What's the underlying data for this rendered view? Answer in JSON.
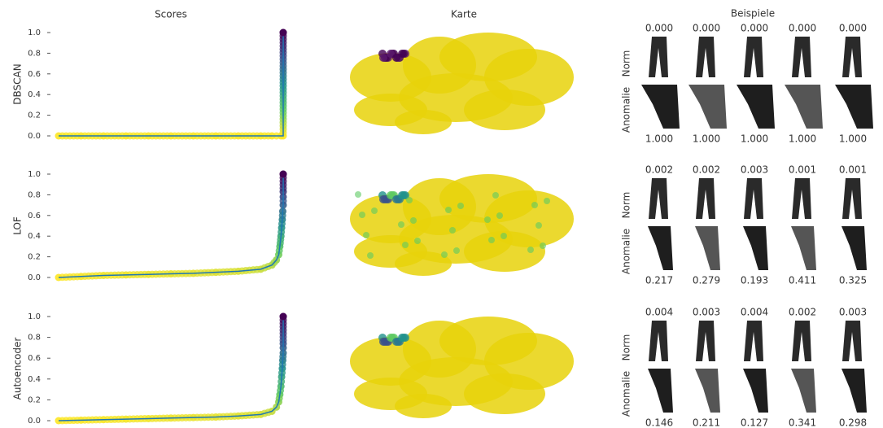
{
  "header": {
    "scores": "Scores",
    "map": "Karte",
    "examples": "Beispiele"
  },
  "chart_data": [
    {
      "type": "line",
      "ylabel": "DBSCAN",
      "colormap": "viridis",
      "line_color": "#1f77b4",
      "xlim": [
        0,
        1
      ],
      "ylim": [
        0,
        1
      ],
      "yticks": [
        {
          "value": 0,
          "label": "0.0"
        },
        0.2,
        0.4,
        0.6,
        0.8,
        {
          "value": 1,
          "label": "1.0"
        }
      ],
      "x": [
        0,
        0.1,
        0.2,
        0.3,
        0.4,
        0.5,
        0.6,
        0.7,
        0.8,
        0.9,
        0.95,
        0.99,
        1,
        1
      ],
      "values": [
        0,
        0,
        0,
        0,
        0,
        0,
        0,
        0,
        0,
        0,
        0,
        0,
        0,
        1
      ],
      "examples": {
        "norm_label": "Norm",
        "anomaly_label": "Anomalie",
        "norm": {
          "values": [
            0,
            0,
            0,
            0,
            0
          ],
          "value_labels": [
            "0.000",
            "0.000",
            "0.000",
            "0.000",
            "0.000"
          ]
        },
        "anomaly": {
          "values": [
            1,
            1,
            1,
            1,
            1
          ],
          "value_labels": [
            "1.000",
            "1.000",
            "1.000",
            "1.000",
            "1.000"
          ]
        }
      }
    },
    {
      "type": "line",
      "ylabel": "LOF",
      "colormap": "viridis",
      "line_color": "#1f77b4",
      "xlim": [
        0,
        1
      ],
      "ylim": [
        0,
        1
      ],
      "yticks": [
        {
          "value": 0,
          "label": "0.0"
        },
        0.2,
        0.4,
        0.6,
        0.8,
        {
          "value": 1,
          "label": "1.0"
        }
      ],
      "x": [
        0,
        0.1,
        0.2,
        0.3,
        0.4,
        0.5,
        0.6,
        0.7,
        0.8,
        0.9,
        0.95,
        0.97,
        0.98,
        0.985,
        0.99,
        0.993,
        0.996,
        0.998,
        1,
        1,
        1,
        1
      ],
      "values": [
        0,
        0.01,
        0.02,
        0.025,
        0.03,
        0.035,
        0.04,
        0.05,
        0.06,
        0.08,
        0.12,
        0.17,
        0.22,
        0.3,
        0.4,
        0.48,
        0.56,
        0.64,
        0.7,
        0.78,
        0.83,
        1
      ],
      "examples": {
        "norm_label": "Norm",
        "anomaly_label": "Anomalie",
        "norm": {
          "values": [
            0.002,
            0.002,
            0.003,
            0.001,
            0.001
          ],
          "value_labels": [
            "0.002",
            "0.002",
            "0.003",
            "0.001",
            "0.001"
          ]
        },
        "anomaly": {
          "values": [
            0.217,
            0.279,
            0.193,
            0.411,
            0.325
          ],
          "value_labels": [
            "0.217",
            "0.279",
            "0.193",
            "0.411",
            "0.325"
          ]
        }
      }
    },
    {
      "type": "line",
      "ylabel": "Autoencoder",
      "colormap": "viridis",
      "line_color": "#1f77b4",
      "xlim": [
        0,
        1
      ],
      "ylim": [
        0,
        1
      ],
      "yticks": [
        {
          "value": 0,
          "label": "0.0"
        },
        0.2,
        0.4,
        0.6,
        0.8,
        {
          "value": 1,
          "label": "1.0"
        }
      ],
      "x": [
        0,
        0.1,
        0.2,
        0.3,
        0.4,
        0.5,
        0.6,
        0.7,
        0.8,
        0.9,
        0.95,
        0.97,
        0.98,
        0.985,
        0.99,
        0.993,
        0.996,
        0.998,
        1,
        1,
        1,
        1
      ],
      "values": [
        0,
        0.005,
        0.01,
        0.015,
        0.02,
        0.025,
        0.03,
        0.035,
        0.045,
        0.06,
        0.09,
        0.13,
        0.18,
        0.25,
        0.33,
        0.42,
        0.5,
        0.58,
        0.65,
        0.7,
        0.74,
        1
      ],
      "examples": {
        "norm_label": "Norm",
        "anomaly_label": "Anomalie",
        "norm": {
          "values": [
            0.004,
            0.003,
            0.004,
            0.002,
            0.003
          ],
          "value_labels": [
            "0.004",
            "0.003",
            "0.004",
            "0.002",
            "0.003"
          ]
        },
        "anomaly": {
          "values": [
            0.146,
            0.211,
            0.127,
            0.341,
            0.298
          ],
          "value_labels": [
            "0.146",
            "0.211",
            "0.127",
            "0.341",
            "0.298"
          ]
        }
      }
    }
  ]
}
